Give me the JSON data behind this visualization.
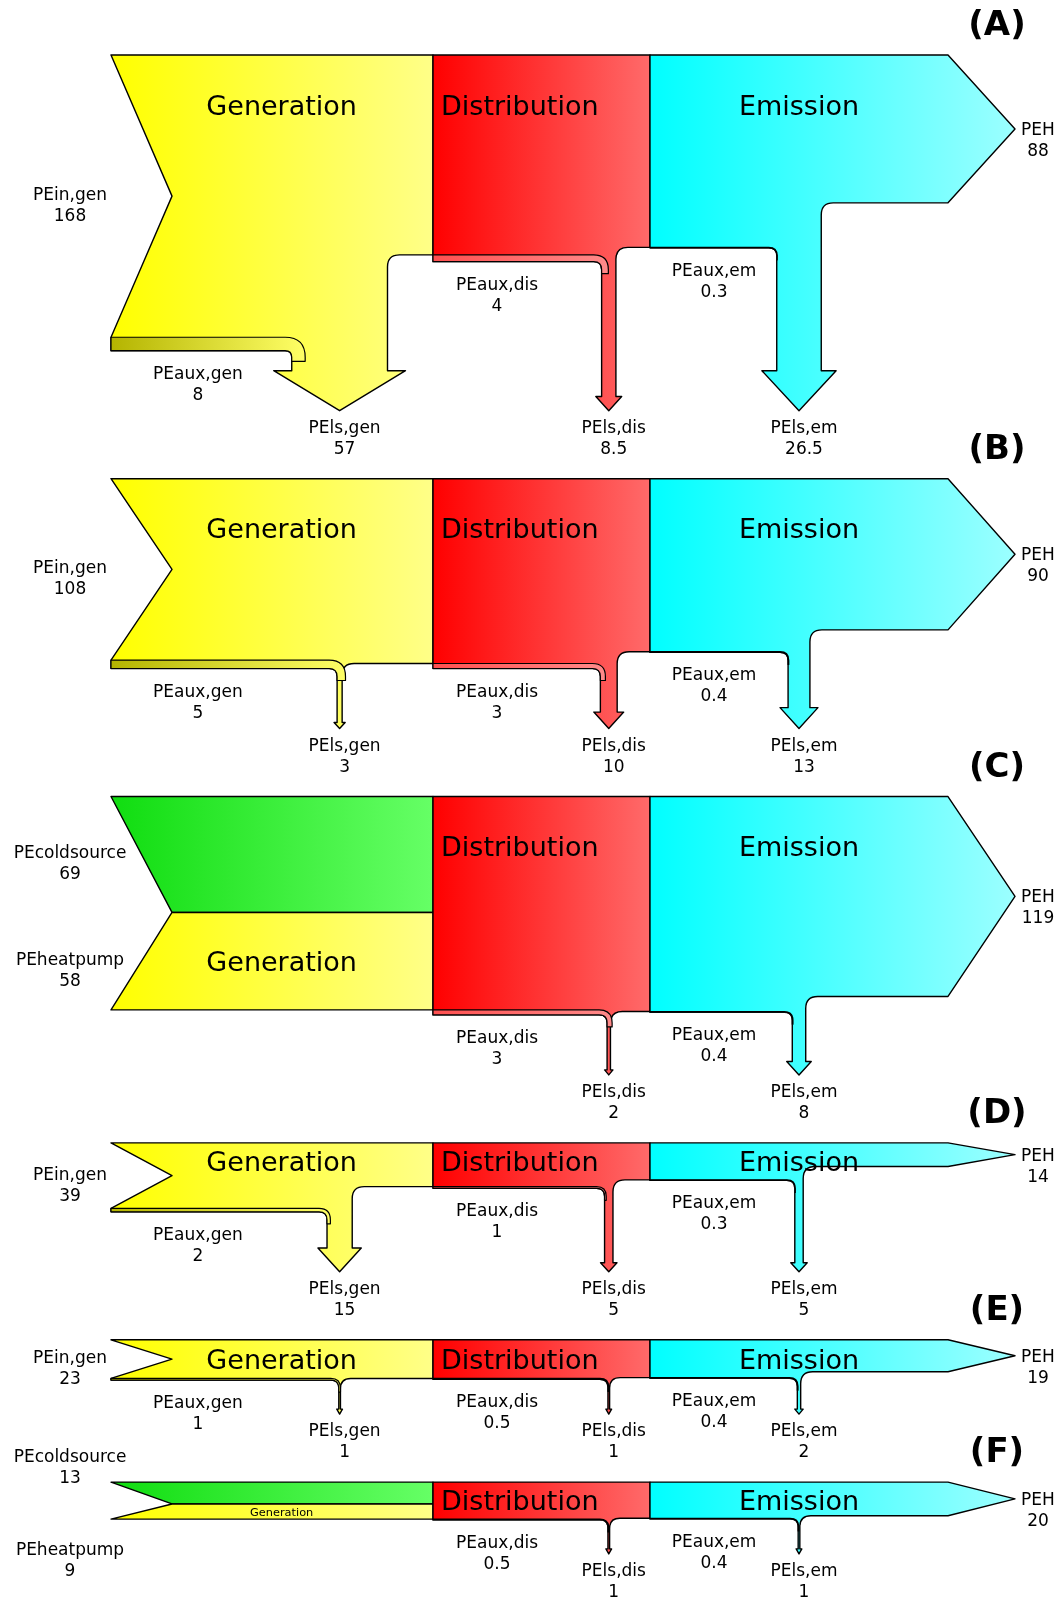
{
  "chart_data": [
    {
      "type": "other",
      "title": "(A)",
      "data_labels": true,
      "categories": [
        "PEin,gen",
        "PEaux,gen",
        "PEls,gen",
        "PEaux,dis",
        "PEls,dis",
        "PEaux,em",
        "PEls,em",
        "PEH"
      ],
      "series": [
        {
          "name": "Generation",
          "values": [
            168,
            8,
            57,
            null,
            null,
            null,
            null,
            null
          ]
        },
        {
          "name": "Distribution",
          "values": [
            null,
            null,
            null,
            4,
            8.5,
            null,
            null,
            null
          ]
        },
        {
          "name": "Emission",
          "values": [
            null,
            null,
            null,
            null,
            null,
            0.3,
            26.5,
            88
          ]
        }
      ]
    },
    {
      "type": "other",
      "title": "(B)",
      "data_labels": true,
      "categories": [
        "PEin,gen",
        "PEaux,gen",
        "PEls,gen",
        "PEaux,dis",
        "PEls,dis",
        "PEaux,em",
        "PEls,em",
        "PEH"
      ],
      "series": [
        {
          "name": "Generation",
          "values": [
            108,
            5,
            3,
            null,
            null,
            null,
            null,
            null
          ]
        },
        {
          "name": "Distribution",
          "values": [
            null,
            null,
            null,
            3,
            10,
            null,
            null,
            null
          ]
        },
        {
          "name": "Emission",
          "values": [
            null,
            null,
            null,
            null,
            null,
            0.4,
            13,
            90
          ]
        }
      ]
    },
    {
      "type": "other",
      "title": "(C)",
      "data_labels": true,
      "categories": [
        "PEcoldsource",
        "PEheatpump",
        "PEaux,dis",
        "PEls,dis",
        "PEaux,em",
        "PEls,em",
        "PEH"
      ],
      "series": [
        {
          "values": [
            69,
            null,
            null,
            null,
            null,
            null,
            null
          ]
        },
        {
          "name": "Generation",
          "values": [
            null,
            58,
            null,
            null,
            null,
            null,
            null
          ]
        },
        {
          "name": "Distribution",
          "values": [
            null,
            null,
            3,
            2,
            null,
            null,
            null
          ]
        },
        {
          "name": "Emission",
          "values": [
            null,
            null,
            null,
            null,
            0.4,
            8,
            119
          ]
        }
      ]
    },
    {
      "type": "other",
      "title": "(D)",
      "data_labels": true,
      "categories": [
        "PEin,gen",
        "PEaux,gen",
        "PEls,gen",
        "PEaux,dis",
        "PEls,dis",
        "PEaux,em",
        "PEls,em",
        "PEH"
      ],
      "series": [
        {
          "name": "Generation",
          "values": [
            39,
            2,
            15,
            null,
            null,
            null,
            null,
            null
          ]
        },
        {
          "name": "Distribution",
          "values": [
            null,
            null,
            null,
            1,
            5,
            null,
            null,
            null
          ]
        },
        {
          "name": "Emission",
          "values": [
            null,
            null,
            null,
            null,
            null,
            0.3,
            5,
            14
          ]
        }
      ]
    },
    {
      "type": "other",
      "title": "(E)",
      "data_labels": true,
      "categories": [
        "PEin,gen",
        "PEaux,gen",
        "PEls,gen",
        "PEaux,dis",
        "PEls,dis",
        "PEaux,em",
        "PEls,em",
        "PEH"
      ],
      "series": [
        {
          "name": "Generation",
          "values": [
            23,
            1,
            1,
            null,
            null,
            null,
            null,
            null
          ]
        },
        {
          "name": "Distribution",
          "values": [
            null,
            null,
            null,
            0.5,
            1,
            null,
            null,
            null
          ]
        },
        {
          "name": "Emission",
          "values": [
            null,
            null,
            null,
            null,
            null,
            0.4,
            2,
            19
          ]
        }
      ]
    },
    {
      "type": "other",
      "title": "(F)",
      "data_labels": true,
      "categories": [
        "PEcoldsource",
        "PEheatpump",
        "PEaux,dis",
        "PEls,dis",
        "PEaux,em",
        "PEls,em",
        "PEH"
      ],
      "series": [
        {
          "values": [
            13,
            null,
            null,
            null,
            null,
            null,
            null
          ]
        },
        {
          "name": "Generation",
          "values": [
            null,
            9,
            null,
            null,
            null,
            null,
            null
          ]
        },
        {
          "name": "Distribution",
          "values": [
            null,
            null,
            0.5,
            1,
            null,
            null,
            null
          ]
        },
        {
          "name": "Emission",
          "values": [
            null,
            null,
            null,
            null,
            0.4,
            1,
            20
          ]
        }
      ]
    }
  ]
}
